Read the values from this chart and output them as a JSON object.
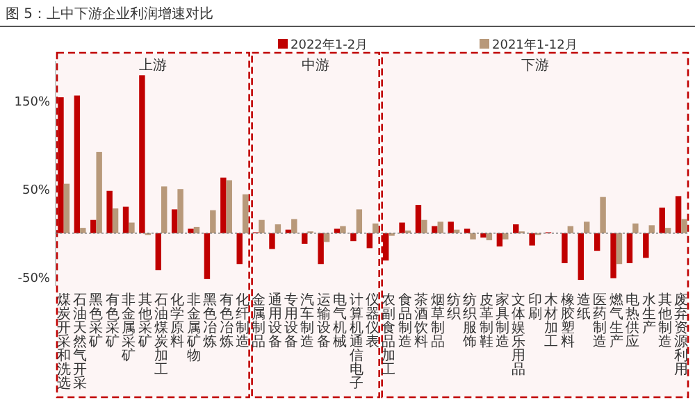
{
  "chart_data": {
    "type": "bar",
    "title": "图 5：上中下游企业利润增速对比",
    "categories": [
      "煤炭开采和洗选",
      "石油天然气开采",
      "黑色采矿",
      "有色采矿",
      "非金属采矿",
      "其他采矿",
      "石油煤炭加工",
      "化学原料",
      "非金属矿物",
      "黑色冶炼",
      "有色冶炼",
      "化纤制造",
      "金属制品",
      "通用设备",
      "专用设备",
      "汽车制造",
      "运输设备",
      "电气机械",
      "计算机通信电子",
      "仪器仪表",
      "农副食品加工",
      "食品制造",
      "茶酒饮料",
      "烟草制品",
      "纺织",
      "纺织服饰",
      "皮革制鞋",
      "家具制造",
      "文体娱乐用品",
      "印刷",
      "木材加工",
      "橡胶塑料",
      "造纸",
      "医药制造",
      "燃气生产",
      "电热供应",
      "水生产",
      "其他制造",
      "废弃资源利用"
    ],
    "series": [
      {
        "name": "2022年1-2月",
        "color": "#c00000",
        "values": [
          154,
          156,
          15,
          48,
          30,
          179,
          -42,
          27,
          5,
          -52,
          63,
          -35,
          1,
          -18,
          4,
          -12,
          -35,
          5,
          -9,
          -17,
          -31,
          12,
          32,
          8,
          13,
          5,
          -5,
          -15,
          10,
          -14,
          1,
          -34,
          -53,
          -20,
          -51,
          -34,
          -28,
          29,
          42
        ]
      },
      {
        "name": "2021年1-12月",
        "color": "#b8997a",
        "values": [
          56,
          6,
          92,
          28,
          12,
          -2,
          53,
          50,
          7,
          26,
          60,
          44,
          15,
          10,
          16,
          2,
          -10,
          8,
          27,
          11,
          -3,
          3,
          15,
          13,
          4,
          -7,
          -8,
          -7,
          2,
          -2,
          0,
          8,
          13,
          41,
          -35,
          11,
          9,
          6,
          16
        ]
      }
    ],
    "ylim": [
      -60,
      195
    ],
    "yticks": [
      {
        "value": -50,
        "label": "-50%"
      },
      {
        "value": 50,
        "label": "50%"
      },
      {
        "value": 150,
        "label": "150%"
      }
    ],
    "legend": "top",
    "ref_lines": [
      {
        "axis": "y",
        "value": 0,
        "color": "#777777"
      }
    ],
    "bands": [
      {
        "axis": "x",
        "from": "煤炭开采和洗选",
        "to": "化纤制造",
        "label": "上游",
        "color": "#c00000"
      },
      {
        "axis": "x",
        "from": "金属制品",
        "to": "仪器仪表",
        "label": "中游",
        "color": "#c00000"
      },
      {
        "axis": "x",
        "from": "农副食品加工",
        "to": "废弃资源利用",
        "label": "下游",
        "color": "#c00000"
      }
    ]
  }
}
